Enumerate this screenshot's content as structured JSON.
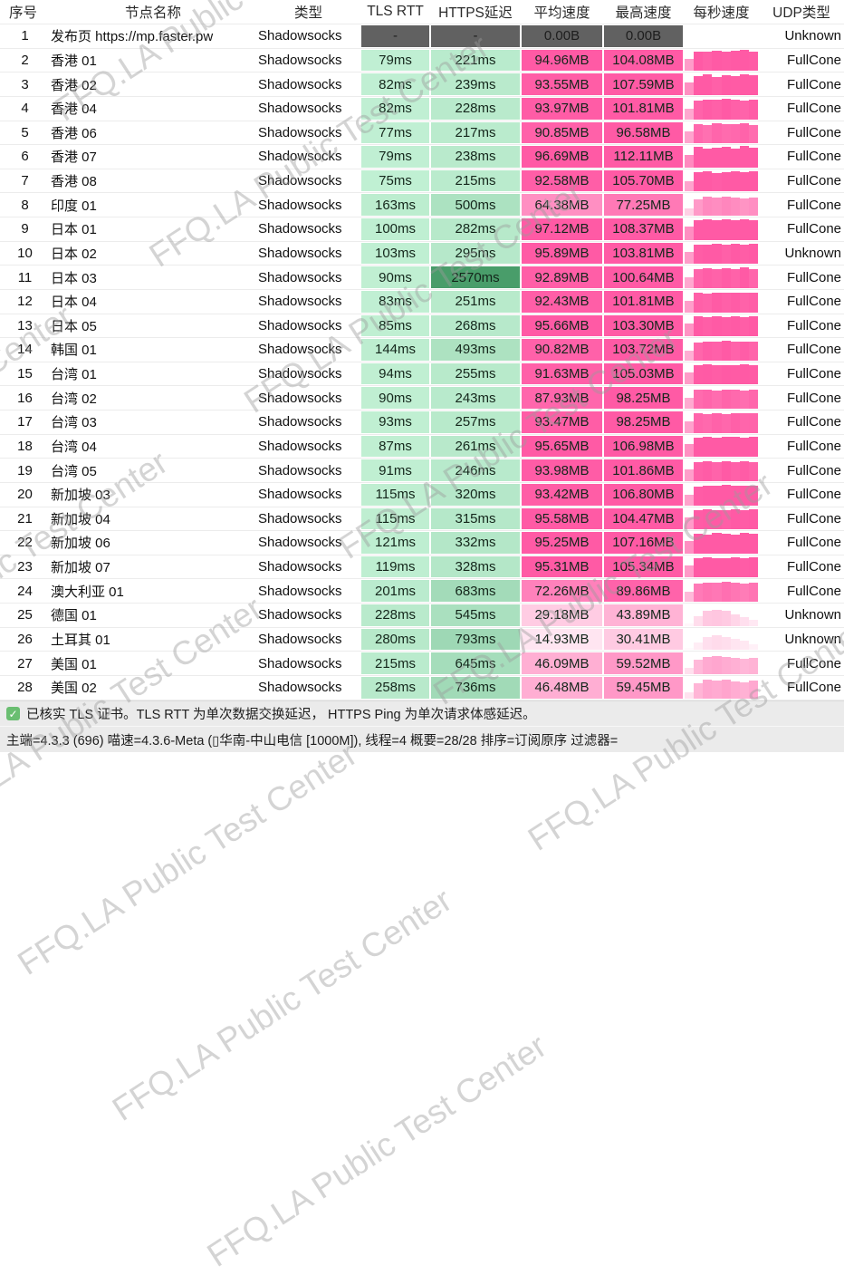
{
  "watermark": {
    "text": "FFQ.LA Public Test Center"
  },
  "colors": {
    "latency_low": "#c4f2d6",
    "latency_high": "#358f58",
    "speed_low": "#ffffff",
    "speed_high": "#ff5aa5",
    "na_cell_bg": "#616161",
    "na_cell_text": "#1d1d1d",
    "row_divider": "#ececec",
    "footer_bg": "#ebebeb",
    "check_green": "#6abe71"
  },
  "table": {
    "columns": [
      {
        "key": "index",
        "label": "序号"
      },
      {
        "key": "name",
        "label": "节点名称"
      },
      {
        "key": "type",
        "label": "类型"
      },
      {
        "key": "tls_rtt",
        "label": "TLS RTT"
      },
      {
        "key": "https_delay",
        "label": "HTTPS延迟"
      },
      {
        "key": "avg_speed",
        "label": "平均速度"
      },
      {
        "key": "max_speed",
        "label": "最高速度"
      },
      {
        "key": "per_sec_speed",
        "label": "每秒速度"
      },
      {
        "key": "udp_type",
        "label": "UDP类型"
      }
    ],
    "rows": [
      {
        "index": "1",
        "name": "发布页 https://mp.faster.pw",
        "type": "Shadowsocks",
        "tls_rtt": "-",
        "https_delay": "-",
        "avg_speed": "0.00B",
        "max_speed": "0.00B",
        "udp_type": "Unknown",
        "na": true,
        "bars": []
      },
      {
        "index": "2",
        "name": "香港 01",
        "type": "Shadowsocks",
        "tls_rtt": "79ms",
        "tls_ms": 79,
        "https_delay": "221ms",
        "https_ms": 221,
        "avg_speed": "94.96MB",
        "avg_mb": 94.96,
        "max_speed": "104.08MB",
        "max_mb": 104.08,
        "udp_type": "FullCone",
        "bars": [
          0.55,
          0.92,
          0.88,
          0.95,
          0.9,
          0.93,
          1.0,
          0.9
        ]
      },
      {
        "index": "3",
        "name": "香港 02",
        "type": "Shadowsocks",
        "tls_rtt": "82ms",
        "tls_ms": 82,
        "https_delay": "239ms",
        "https_ms": 239,
        "avg_speed": "93.55MB",
        "avg_mb": 93.55,
        "max_speed": "107.59MB",
        "max_mb": 107.59,
        "udp_type": "FullCone",
        "bars": [
          0.6,
          0.9,
          0.95,
          0.85,
          0.92,
          0.88,
          0.96,
          0.94
        ]
      },
      {
        "index": "4",
        "name": "香港 04",
        "type": "Shadowsocks",
        "tls_rtt": "82ms",
        "tls_ms": 82,
        "https_delay": "228ms",
        "https_ms": 228,
        "avg_speed": "93.97MB",
        "avg_mb": 93.97,
        "max_speed": "101.81MB",
        "max_mb": 101.81,
        "udp_type": "FullCone",
        "bars": [
          0.5,
          0.88,
          0.92,
          0.9,
          0.95,
          0.9,
          0.88,
          0.92
        ]
      },
      {
        "index": "5",
        "name": "香港 06",
        "type": "Shadowsocks",
        "tls_rtt": "77ms",
        "tls_ms": 77,
        "https_delay": "217ms",
        "https_ms": 217,
        "avg_speed": "90.85MB",
        "avg_mb": 90.85,
        "max_speed": "96.58MB",
        "max_mb": 96.58,
        "udp_type": "FullCone",
        "bars": [
          0.55,
          0.9,
          0.85,
          0.92,
          0.88,
          0.9,
          0.93,
          0.87
        ]
      },
      {
        "index": "6",
        "name": "香港 07",
        "type": "Shadowsocks",
        "tls_rtt": "79ms",
        "tls_ms": 79,
        "https_delay": "238ms",
        "https_ms": 238,
        "avg_speed": "96.69MB",
        "avg_mb": 96.69,
        "max_speed": "112.11MB",
        "max_mb": 112.11,
        "udp_type": "FullCone",
        "bars": [
          0.6,
          0.95,
          0.9,
          0.92,
          0.96,
          0.9,
          1.0,
          0.93
        ]
      },
      {
        "index": "7",
        "name": "香港 08",
        "type": "Shadowsocks",
        "tls_rtt": "75ms",
        "tls_ms": 75,
        "https_delay": "215ms",
        "https_ms": 215,
        "avg_speed": "92.58MB",
        "avg_mb": 92.58,
        "max_speed": "105.70MB",
        "max_mb": 105.7,
        "udp_type": "FullCone",
        "bars": [
          0.5,
          0.9,
          0.93,
          0.88,
          0.92,
          0.95,
          0.9,
          0.94
        ]
      },
      {
        "index": "8",
        "name": "印度 01",
        "type": "Shadowsocks",
        "tls_rtt": "163ms",
        "tls_ms": 163,
        "https_delay": "500ms",
        "https_ms": 500,
        "avg_speed": "64.38MB",
        "avg_mb": 64.38,
        "max_speed": "77.25MB",
        "max_mb": 77.25,
        "udp_type": "FullCone",
        "bars": [
          0.35,
          0.75,
          0.88,
          0.85,
          0.9,
          0.86,
          0.8,
          0.84
        ]
      },
      {
        "index": "9",
        "name": "日本 01",
        "type": "Shadowsocks",
        "tls_rtt": "100ms",
        "tls_ms": 100,
        "https_delay": "282ms",
        "https_ms": 282,
        "avg_speed": "97.12MB",
        "avg_mb": 97.12,
        "max_speed": "108.37MB",
        "max_mb": 108.37,
        "udp_type": "FullCone",
        "bars": [
          0.6,
          0.92,
          0.95,
          0.9,
          0.94,
          0.92,
          0.96,
          0.9
        ]
      },
      {
        "index": "10",
        "name": "日本 02",
        "type": "Shadowsocks",
        "tls_rtt": "103ms",
        "tls_ms": 103,
        "https_delay": "295ms",
        "https_ms": 295,
        "avg_speed": "95.89MB",
        "avg_mb": 95.89,
        "max_speed": "103.81MB",
        "max_mb": 103.81,
        "udp_type": "Unknown",
        "bars": [
          0.55,
          0.9,
          0.92,
          0.95,
          0.88,
          0.93,
          0.9,
          0.94
        ]
      },
      {
        "index": "11",
        "name": "日本 03",
        "type": "Shadowsocks",
        "tls_rtt": "90ms",
        "tls_ms": 90,
        "https_delay": "2570ms",
        "https_ms": 2570,
        "avg_speed": "92.89MB",
        "avg_mb": 92.89,
        "max_speed": "100.64MB",
        "max_mb": 100.64,
        "udp_type": "FullCone",
        "bars": [
          0.5,
          0.88,
          0.92,
          0.9,
          0.93,
          0.9,
          0.95,
          0.88
        ]
      },
      {
        "index": "12",
        "name": "日本 04",
        "type": "Shadowsocks",
        "tls_rtt": "83ms",
        "tls_ms": 83,
        "https_delay": "251ms",
        "https_ms": 251,
        "avg_speed": "92.43MB",
        "avg_mb": 92.43,
        "max_speed": "101.81MB",
        "max_mb": 101.81,
        "udp_type": "FullCone",
        "bars": [
          0.55,
          0.9,
          0.88,
          0.93,
          0.9,
          0.92,
          0.89,
          0.91
        ]
      },
      {
        "index": "13",
        "name": "日本 05",
        "type": "Shadowsocks",
        "tls_rtt": "85ms",
        "tls_ms": 85,
        "https_delay": "268ms",
        "https_ms": 268,
        "avg_speed": "95.66MB",
        "avg_mb": 95.66,
        "max_speed": "103.30MB",
        "max_mb": 103.3,
        "udp_type": "FullCone",
        "bars": [
          0.6,
          0.92,
          0.9,
          0.94,
          0.91,
          0.95,
          0.9,
          0.93
        ]
      },
      {
        "index": "14",
        "name": "韩国 01",
        "type": "Shadowsocks",
        "tls_rtt": "144ms",
        "tls_ms": 144,
        "https_delay": "493ms",
        "https_ms": 493,
        "avg_speed": "90.82MB",
        "avg_mb": 90.82,
        "max_speed": "103.72MB",
        "max_mb": 103.72,
        "udp_type": "FullCone",
        "bars": [
          0.45,
          0.85,
          0.9,
          0.88,
          0.92,
          0.87,
          0.9,
          0.86
        ]
      },
      {
        "index": "15",
        "name": "台湾 01",
        "type": "Shadowsocks",
        "tls_rtt": "94ms",
        "tls_ms": 94,
        "https_delay": "255ms",
        "https_ms": 255,
        "avg_speed": "91.63MB",
        "avg_mb": 91.63,
        "max_speed": "105.03MB",
        "max_mb": 105.03,
        "udp_type": "FullCone",
        "bars": [
          0.55,
          0.9,
          0.93,
          0.89,
          0.92,
          0.9,
          0.94,
          0.9
        ]
      },
      {
        "index": "16",
        "name": "台湾 02",
        "type": "Shadowsocks",
        "tls_rtt": "90ms",
        "tls_ms": 90,
        "https_delay": "243ms",
        "https_ms": 243,
        "avg_speed": "87.93MB",
        "avg_mb": 87.93,
        "max_speed": "98.25MB",
        "max_mb": 98.25,
        "udp_type": "FullCone",
        "bars": [
          0.5,
          0.87,
          0.9,
          0.86,
          0.91,
          0.88,
          0.85,
          0.89
        ]
      },
      {
        "index": "17",
        "name": "台湾 03",
        "type": "Shadowsocks",
        "tls_rtt": "93ms",
        "tls_ms": 93,
        "https_delay": "257ms",
        "https_ms": 257,
        "avg_speed": "93.47MB",
        "avg_mb": 93.47,
        "max_speed": "98.25MB",
        "max_mb": 98.25,
        "udp_type": "FullCone",
        "bars": [
          0.55,
          0.9,
          0.88,
          0.92,
          0.89,
          0.93,
          0.9,
          0.91
        ]
      },
      {
        "index": "18",
        "name": "台湾 04",
        "type": "Shadowsocks",
        "tls_rtt": "87ms",
        "tls_ms": 87,
        "https_delay": "261ms",
        "https_ms": 261,
        "avg_speed": "95.65MB",
        "avg_mb": 95.65,
        "max_speed": "106.98MB",
        "max_mb": 106.98,
        "udp_type": "FullCone",
        "bars": [
          0.6,
          0.92,
          0.95,
          0.9,
          0.93,
          0.96,
          0.91,
          0.94
        ]
      },
      {
        "index": "19",
        "name": "台湾 05",
        "type": "Shadowsocks",
        "tls_rtt": "91ms",
        "tls_ms": 91,
        "https_delay": "246ms",
        "https_ms": 246,
        "avg_speed": "93.98MB",
        "avg_mb": 93.98,
        "max_speed": "101.86MB",
        "max_mb": 101.86,
        "udp_type": "FullCone",
        "bars": [
          0.55,
          0.9,
          0.92,
          0.88,
          0.94,
          0.9,
          0.92,
          0.89
        ]
      },
      {
        "index": "20",
        "name": "新加坡 03",
        "type": "Shadowsocks",
        "tls_rtt": "115ms",
        "tls_ms": 115,
        "https_delay": "320ms",
        "https_ms": 320,
        "avg_speed": "93.42MB",
        "avg_mb": 93.42,
        "max_speed": "106.80MB",
        "max_mb": 106.8,
        "udp_type": "FullCone",
        "bars": [
          0.5,
          0.88,
          0.92,
          0.9,
          0.94,
          0.89,
          0.93,
          0.9
        ]
      },
      {
        "index": "21",
        "name": "新加坡 04",
        "type": "Shadowsocks",
        "tls_rtt": "115ms",
        "tls_ms": 115,
        "https_delay": "315ms",
        "https_ms": 315,
        "avg_speed": "95.58MB",
        "avg_mb": 95.58,
        "max_speed": "104.47MB",
        "max_mb": 104.47,
        "udp_type": "FullCone",
        "bars": [
          0.55,
          0.9,
          0.93,
          0.91,
          0.89,
          0.94,
          0.9,
          0.92
        ]
      },
      {
        "index": "22",
        "name": "新加坡 06",
        "type": "Shadowsocks",
        "tls_rtt": "121ms",
        "tls_ms": 121,
        "https_delay": "332ms",
        "https_ms": 332,
        "avg_speed": "95.25MB",
        "avg_mb": 95.25,
        "max_speed": "107.16MB",
        "max_mb": 107.16,
        "udp_type": "FullCone",
        "bars": [
          0.6,
          0.93,
          0.9,
          0.95,
          0.92,
          0.9,
          0.96,
          0.91
        ]
      },
      {
        "index": "23",
        "name": "新加坡 07",
        "type": "Shadowsocks",
        "tls_rtt": "119ms",
        "tls_ms": 119,
        "https_delay": "328ms",
        "https_ms": 328,
        "avg_speed": "95.31MB",
        "avg_mb": 95.31,
        "max_speed": "105.34MB",
        "max_mb": 105.34,
        "udp_type": "FullCone",
        "bars": [
          0.55,
          0.91,
          0.94,
          0.9,
          0.92,
          0.95,
          0.89,
          0.93
        ]
      },
      {
        "index": "24",
        "name": "澳大利亚 01",
        "type": "Shadowsocks",
        "tls_rtt": "201ms",
        "tls_ms": 201,
        "https_delay": "683ms",
        "https_ms": 683,
        "avg_speed": "72.26MB",
        "avg_mb": 72.26,
        "max_speed": "89.86MB",
        "max_mb": 89.86,
        "udp_type": "FullCone",
        "bars": [
          0.45,
          0.85,
          0.9,
          0.87,
          0.92,
          0.88,
          0.84,
          0.89
        ]
      },
      {
        "index": "25",
        "name": "德国 01",
        "type": "Shadowsocks",
        "tls_rtt": "228ms",
        "tls_ms": 228,
        "https_delay": "545ms",
        "https_ms": 545,
        "avg_speed": "29.18MB",
        "avg_mb": 29.18,
        "max_speed": "43.89MB",
        "max_mb": 43.89,
        "udp_type": "Unknown",
        "bars": [
          0.12,
          0.45,
          0.72,
          0.75,
          0.7,
          0.55,
          0.42,
          0.3
        ]
      },
      {
        "index": "26",
        "name": "土耳其 01",
        "type": "Shadowsocks",
        "tls_rtt": "280ms",
        "tls_ms": 280,
        "https_delay": "793ms",
        "https_ms": 793,
        "avg_speed": "14.93MB",
        "avg_mb": 14.93,
        "max_speed": "30.41MB",
        "max_mb": 30.41,
        "udp_type": "Unknown",
        "bars": [
          0.1,
          0.35,
          0.6,
          0.68,
          0.62,
          0.5,
          0.44,
          0.28
        ]
      },
      {
        "index": "27",
        "name": "美国 01",
        "type": "Shadowsocks",
        "tls_rtt": "215ms",
        "tls_ms": 215,
        "https_delay": "645ms",
        "https_ms": 645,
        "avg_speed": "46.09MB",
        "avg_mb": 46.09,
        "max_speed": "59.52MB",
        "max_mb": 59.52,
        "udp_type": "FullCone",
        "bars": [
          0.3,
          0.68,
          0.82,
          0.86,
          0.8,
          0.76,
          0.7,
          0.74
        ]
      },
      {
        "index": "28",
        "name": "美国 02",
        "type": "Shadowsocks",
        "tls_rtt": "258ms",
        "tls_ms": 258,
        "https_delay": "736ms",
        "https_ms": 736,
        "avg_speed": "46.48MB",
        "avg_mb": 46.48,
        "max_speed": "59.45MB",
        "max_mb": 59.45,
        "udp_type": "FullCone",
        "bars": [
          0.28,
          0.72,
          0.86,
          0.82,
          0.88,
          0.8,
          0.76,
          0.84
        ]
      }
    ]
  },
  "footer": {
    "check_icon": "✓",
    "note": "已核实 TLS 证书。TLS RTT 为单次数据交换延迟，  HTTPS Ping 为单次请求体感延迟。",
    "summary": "主端=4.3.3 (696) 喵速=4.3.6-Meta (▯华南-中山电信 [1000M]), 线程=4 概要=28/28 排序=订阅原序 过滤器="
  }
}
